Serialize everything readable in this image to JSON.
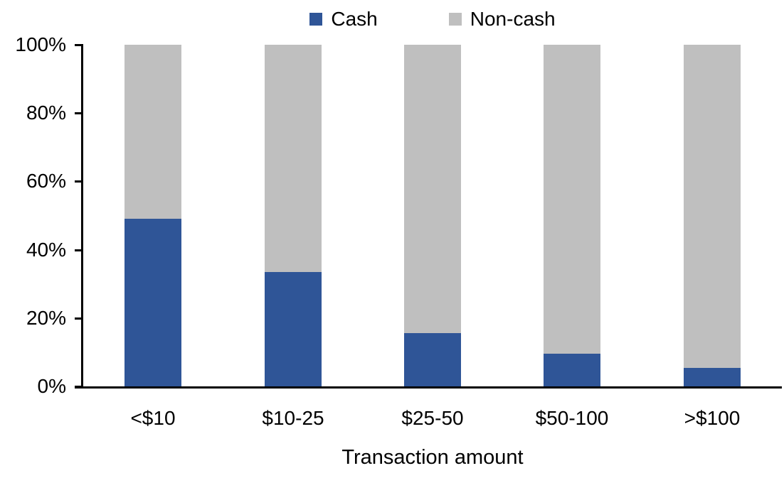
{
  "chart_data": {
    "type": "bar",
    "stacked": true,
    "percent_stacked": true,
    "title": "",
    "xlabel": "Transaction amount",
    "ylabel": "",
    "categories": [
      "<$10",
      "$10-25",
      "$25-50",
      "$50-100",
      ">$100"
    ],
    "series": [
      {
        "name": "Cash",
        "color": "#2F5597",
        "values": [
          49,
          33.5,
          15.5,
          9.5,
          5.5
        ]
      },
      {
        "name": "Non-cash",
        "color": "#BFBFBF",
        "values": [
          51,
          66.5,
          84.5,
          90.5,
          94.5
        ]
      }
    ],
    "ylim": [
      0,
      100
    ],
    "yticks": [
      "0%",
      "20%",
      "40%",
      "60%",
      "80%",
      "100%"
    ],
    "ytick_values": [
      0,
      20,
      40,
      60,
      80,
      100
    ],
    "grid": false,
    "legend_position": "top-center",
    "axis_color": "#000000",
    "text_color": "#000000",
    "background_color": "#FFFFFF"
  }
}
